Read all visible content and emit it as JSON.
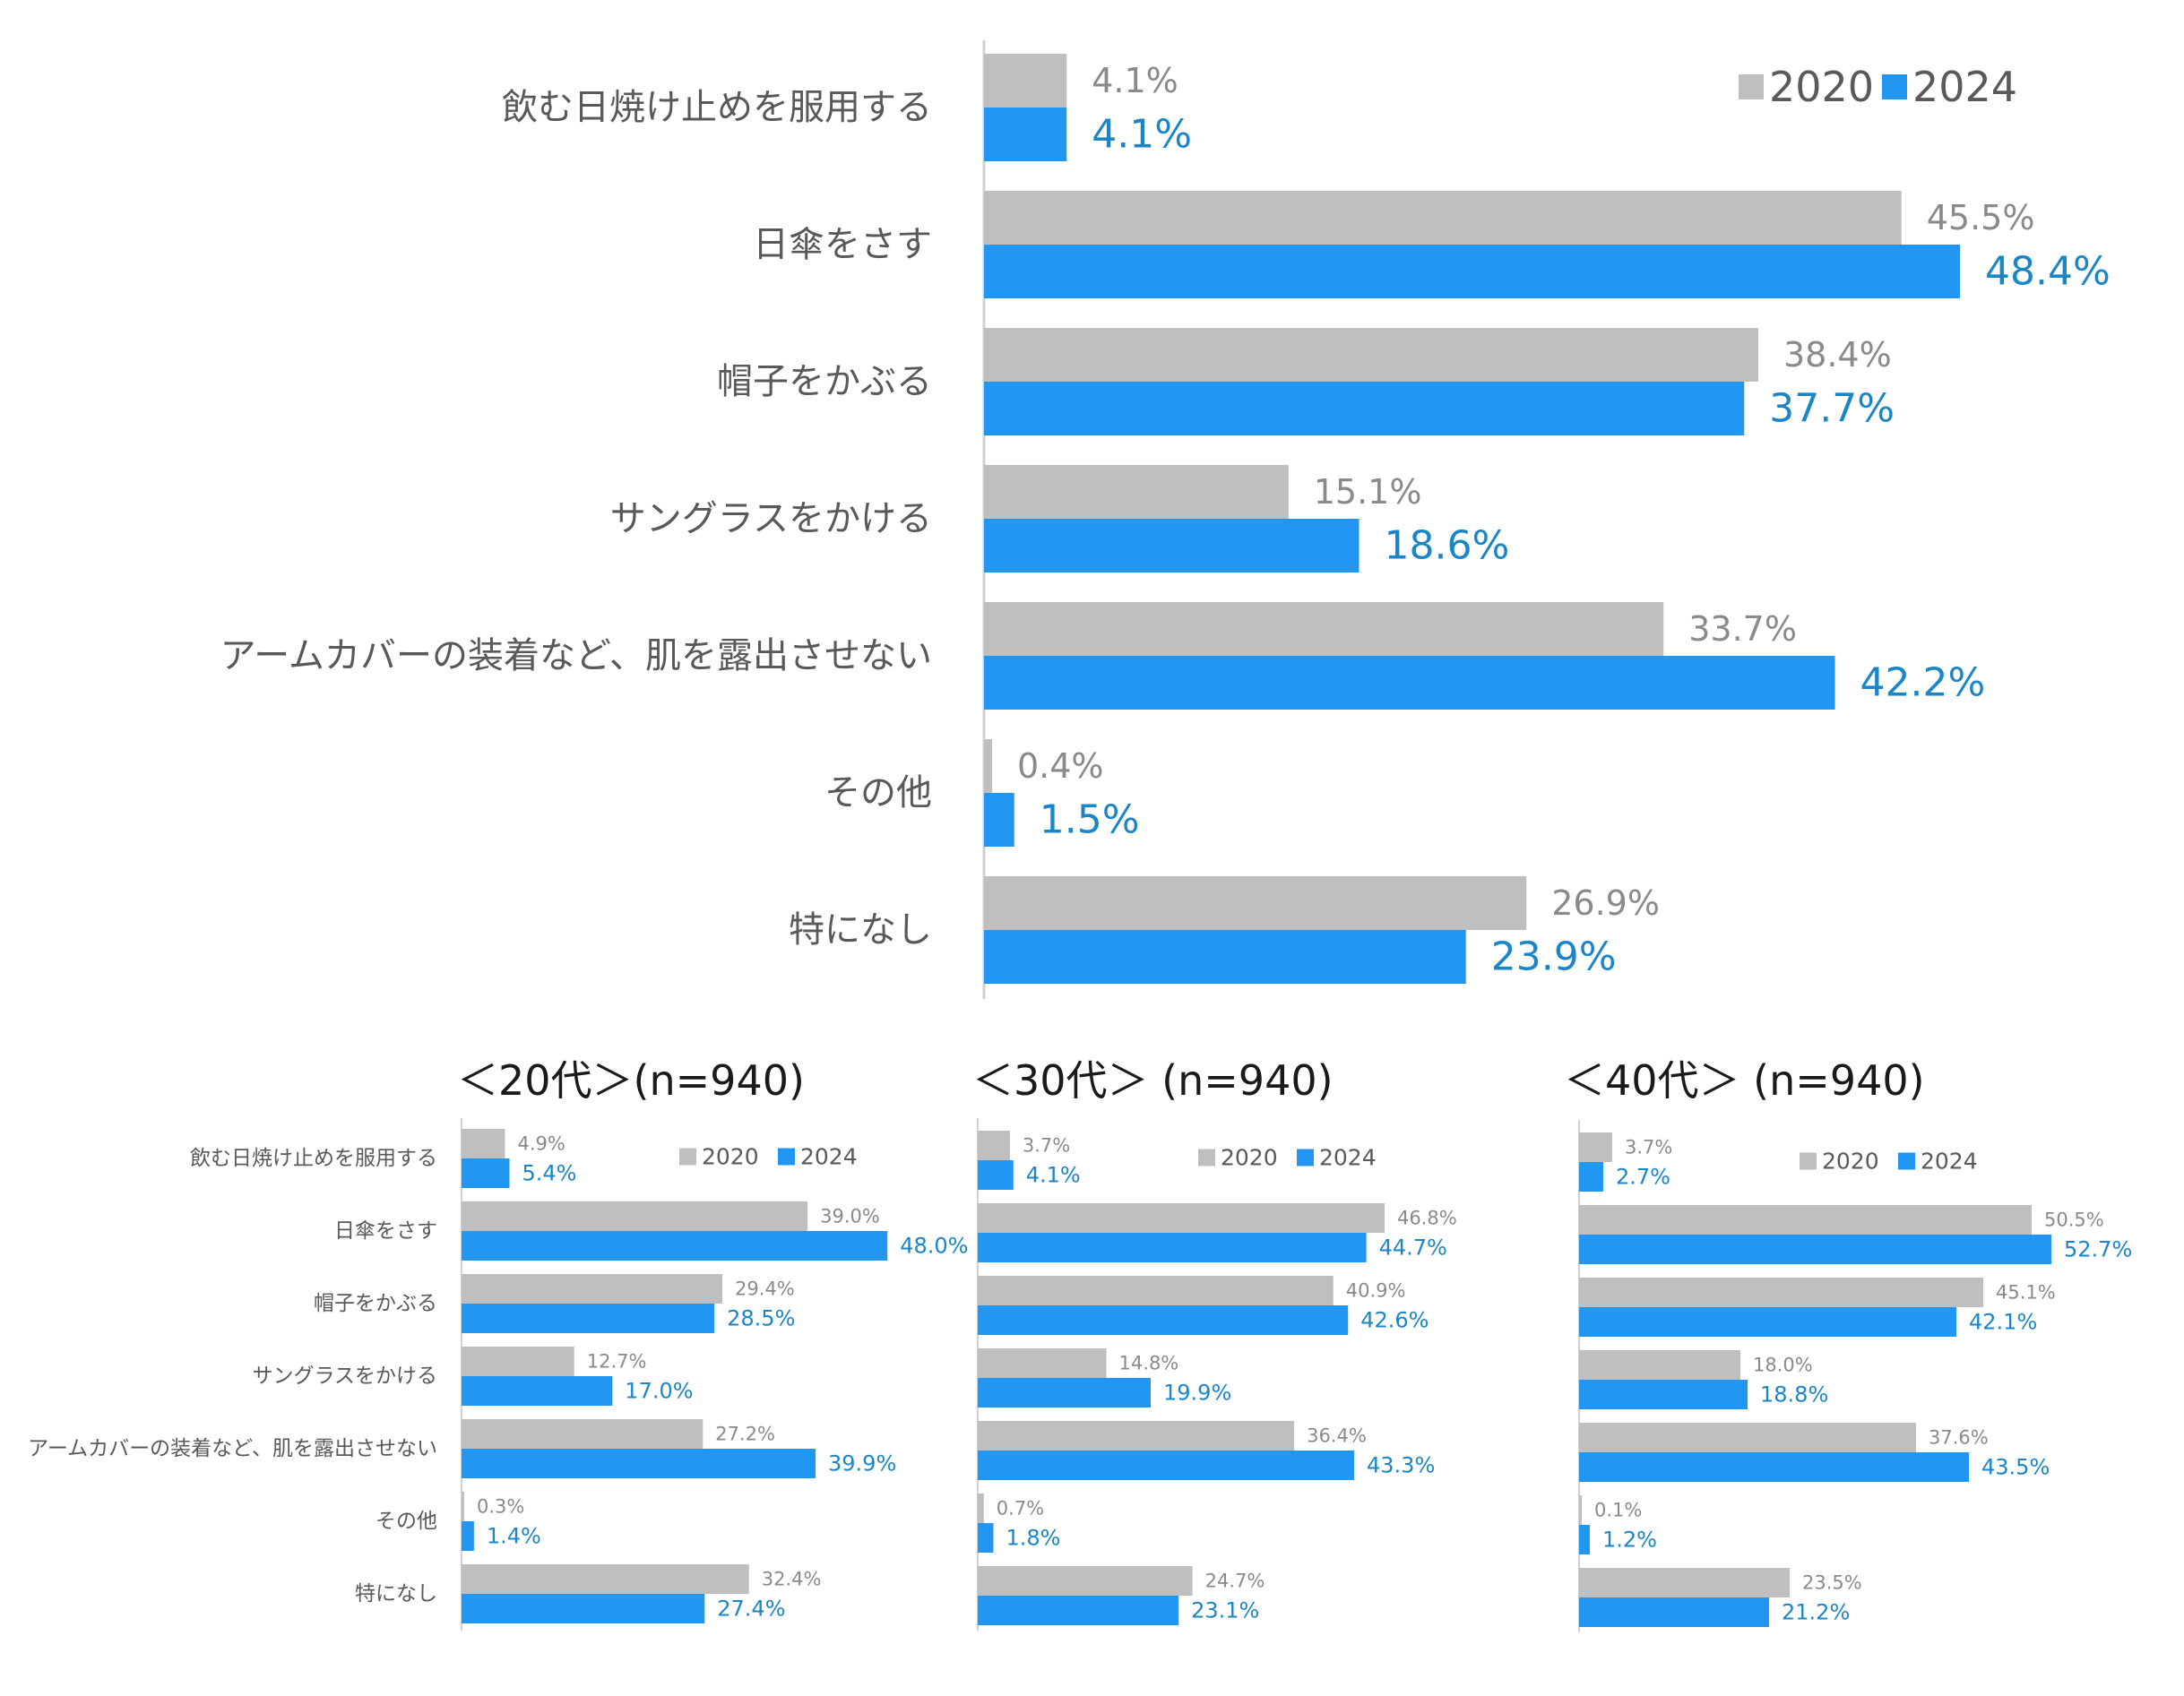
{
  "chart_data": [
    {
      "type": "bar",
      "orientation": "horizontal",
      "title": "",
      "categories": [
        "飲む日焼け止めを服用する",
        "日傘をさす",
        "帽子をかぶる",
        "サングラスをかける",
        "アームカバーの装着など、肌を露出させない",
        "その他",
        "特になし"
      ],
      "series": [
        {
          "name": "2020",
          "color": "#bfbfbf",
          "values": [
            4.1,
            45.5,
            38.4,
            15.1,
            33.7,
            0.4,
            26.9
          ],
          "labels": [
            "4.1%",
            "45.5%",
            "38.4%",
            "15.1%",
            "33.7%",
            "0.4%",
            "26.9%"
          ]
        },
        {
          "name": "2024",
          "color": "#2196f3",
          "values": [
            4.1,
            48.4,
            37.7,
            18.6,
            42.2,
            1.5,
            23.9
          ],
          "labels": [
            "4.1%",
            "48.4%",
            "37.7%",
            "18.6%",
            "42.2%",
            "1.5%",
            "23.9%"
          ]
        }
      ],
      "legend": "top-right"
    },
    {
      "type": "bar",
      "orientation": "horizontal",
      "title": "＜20代＞(n=940)",
      "categories": [
        "飲む日焼け止めを服用する",
        "日傘をさす",
        "帽子をかぶる",
        "サングラスをかける",
        "アームカバーの装着など、肌を露出させない",
        "その他",
        "特になし"
      ],
      "series": [
        {
          "name": "2020",
          "color": "#bfbfbf",
          "values": [
            4.9,
            39.0,
            29.4,
            12.7,
            27.2,
            0.3,
            32.4
          ],
          "labels": [
            "4.9%",
            "39.0%",
            "29.4%",
            "12.7%",
            "27.2%",
            "0.3%",
            "32.4%"
          ]
        },
        {
          "name": "2024",
          "color": "#2196f3",
          "values": [
            5.4,
            48.0,
            28.5,
            17.0,
            39.9,
            1.4,
            27.4
          ],
          "labels": [
            "5.4%",
            "48.0%",
            "28.5%",
            "17.0%",
            "39.9%",
            "1.4%",
            "27.4%"
          ]
        }
      ],
      "legend": "top-right"
    },
    {
      "type": "bar",
      "orientation": "horizontal",
      "title": "＜30代＞ (n=940)",
      "categories": [
        "飲む日焼け止めを服用する",
        "日傘をさす",
        "帽子をかぶる",
        "サングラスをかける",
        "アームカバーの装着など、肌を露出させない",
        "その他",
        "特になし"
      ],
      "series": [
        {
          "name": "2020",
          "color": "#bfbfbf",
          "values": [
            3.7,
            46.8,
            40.9,
            14.8,
            36.4,
            0.7,
            24.7
          ],
          "labels": [
            "3.7%",
            "46.8%",
            "40.9%",
            "14.8%",
            "36.4%",
            "0.7%",
            "24.7%"
          ]
        },
        {
          "name": "2024",
          "color": "#2196f3",
          "values": [
            4.1,
            44.7,
            42.6,
            19.9,
            43.3,
            1.8,
            23.1
          ],
          "labels": [
            "4.1%",
            "44.7%",
            "42.6%",
            "19.9%",
            "43.3%",
            "1.8%",
            "23.1%"
          ]
        }
      ],
      "legend": "top-right"
    },
    {
      "type": "bar",
      "orientation": "horizontal",
      "title": "＜40代＞ (n=940)",
      "categories": [
        "飲む日焼け止めを服用する",
        "日傘をさす",
        "帽子をかぶる",
        "サングラスをかける",
        "アームカバーの装着など、肌を露出させない",
        "その他",
        "特になし"
      ],
      "series": [
        {
          "name": "2020",
          "color": "#bfbfbf",
          "values": [
            3.7,
            50.5,
            45.1,
            18.0,
            37.6,
            0.1,
            23.5
          ],
          "labels": [
            "3.7%",
            "50.5%",
            "45.1%",
            "18.0%",
            "37.6%",
            "0.1%",
            "23.5%"
          ]
        },
        {
          "name": "2024",
          "color": "#2196f3",
          "values": [
            2.7,
            52.7,
            42.1,
            18.8,
            43.5,
            1.2,
            21.2
          ],
          "labels": [
            "2.7%",
            "52.7%",
            "42.1%",
            "18.8%",
            "43.5%",
            "1.2%",
            "21.2%"
          ]
        }
      ],
      "legend": "top-right"
    }
  ]
}
